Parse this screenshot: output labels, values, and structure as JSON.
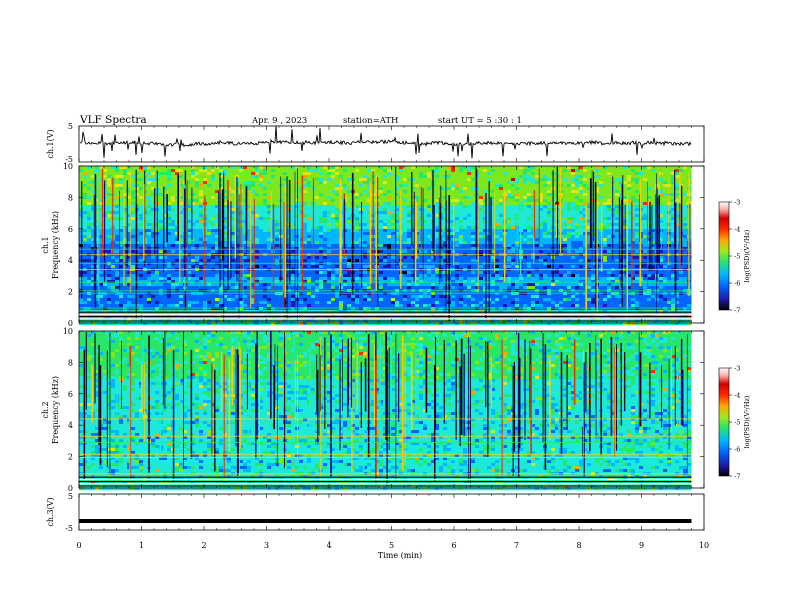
{
  "header": {
    "title": "VLF  Spectra",
    "date": "Apr. 9  , 2023",
    "station": "station=ATH",
    "start": "start  UT  =    5  :30 : 1"
  },
  "chart_data": [
    {
      "type": "line",
      "panel": "ch1-waveform",
      "ylabel": "ch.1(V)",
      "ytick_labels": [
        "5",
        "-5"
      ],
      "ylim": [
        -5,
        5
      ],
      "baseline": 0.3,
      "color": "#000000"
    },
    {
      "type": "heatmap",
      "panel": "ch1-spectrogram",
      "ylabel_top": "ch.1",
      "ylabel": "Frequency  (kHz)",
      "ytick_labels": [
        "0",
        "2",
        "4",
        "6",
        "8",
        "10"
      ],
      "ylim": [
        0,
        10
      ],
      "xlim": [
        0,
        10
      ],
      "colorbar": {
        "label": "log(PSD)(V²/Hz)",
        "ticks": [
          "-3",
          "-4",
          "-5",
          "-6",
          "-7"
        ],
        "range": [
          -7,
          -3
        ]
      }
    },
    {
      "type": "heatmap",
      "panel": "ch2-spectrogram",
      "ylabel_top": "ch.2",
      "ylabel": "Frequency  (kHz)",
      "ytick_labels": [
        "0",
        "2",
        "4",
        "6",
        "8",
        "10"
      ],
      "ylim": [
        0,
        10
      ],
      "xlim": [
        0,
        10
      ],
      "colorbar": {
        "label": "log(PSD)(V²/Hz)",
        "ticks": [
          "-3",
          "-4",
          "-5",
          "-6",
          "-7"
        ],
        "range": [
          -7,
          -3
        ]
      }
    },
    {
      "type": "line",
      "panel": "ch3-waveform",
      "ylabel": "ch.3(V)",
      "ytick_labels": [
        "5",
        "-5"
      ],
      "ylim": [
        -5,
        5
      ],
      "baseline": -2.5,
      "color": "#000000"
    }
  ],
  "xaxis": {
    "label": "Time  (min)",
    "tick_labels": [
      "0",
      "1",
      "2",
      "3",
      "4",
      "5",
      "6",
      "7",
      "8",
      "9",
      "10"
    ],
    "xlim": [
      0,
      10
    ],
    "data_end": 9.8
  },
  "colors": {
    "colormap": [
      "#000000",
      "#1b1baa",
      "#0066ff",
      "#00b7ff",
      "#1ee8d6",
      "#28e66a",
      "#7ee81f",
      "#d9e81b",
      "#ffa500",
      "#ff2a00",
      "#cc0000",
      "#ffffff"
    ]
  }
}
